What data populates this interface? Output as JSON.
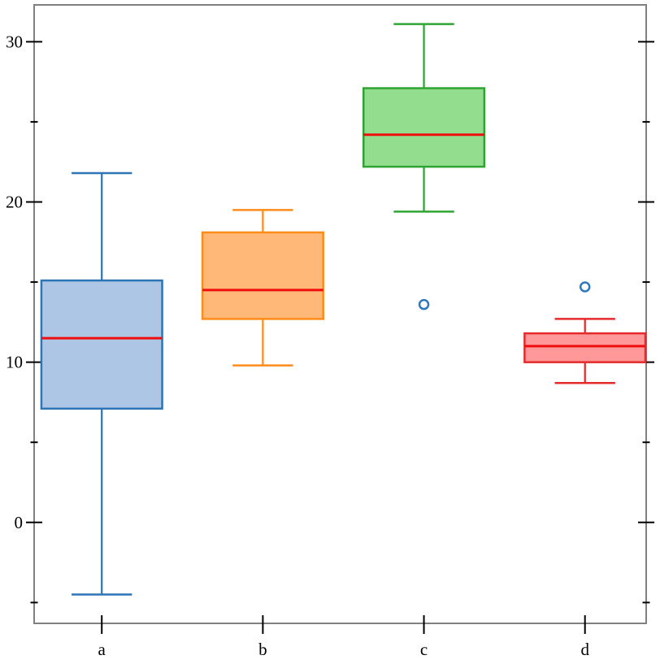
{
  "figure": {
    "background": "#ffffff"
  },
  "chart_data": {
    "type": "boxplot",
    "title": "",
    "xlabel": "",
    "ylabel": "",
    "grid": false,
    "legend": "none",
    "categories": [
      "a",
      "b",
      "c",
      "d"
    ],
    "ylim": [
      -6.3,
      32.3
    ],
    "y_major_ticks": [
      0,
      10,
      20,
      30
    ],
    "y_minor_ticks": [
      -5,
      5,
      15,
      25
    ],
    "axis_color": "#808080",
    "tick_color": "#000000",
    "tick_label_color": "#000000",
    "median_color": "#ee0e0e",
    "outlier_color": "#2e79be",
    "series": [
      {
        "name": "a",
        "position": 1,
        "whisker_low": -4.5,
        "q1": 7.1,
        "median": 11.5,
        "q3": 15.1,
        "whisker_high": 21.8,
        "outliers": [],
        "stroke": "#2e75b6",
        "fill": "#aec6e6"
      },
      {
        "name": "b",
        "position": 2,
        "whisker_low": 9.8,
        "q1": 12.7,
        "median": 14.5,
        "q3": 18.1,
        "whisker_high": 19.5,
        "outliers": [],
        "stroke": "#ff8c1a",
        "fill": "#ffb878"
      },
      {
        "name": "c",
        "position": 3,
        "whisker_low": 19.4,
        "q1": 22.2,
        "median": 24.2,
        "q3": 27.1,
        "whisker_high": 31.1,
        "outliers": [
          13.6
        ],
        "stroke": "#2fa433",
        "fill": "#92dd8e"
      },
      {
        "name": "d",
        "position": 4,
        "whisker_low": 8.7,
        "q1": 10.0,
        "median": 11.0,
        "q3": 11.8,
        "whisker_high": 12.7,
        "outliers": [
          14.7
        ],
        "stroke": "#e32b2b",
        "fill": "#ff9898"
      }
    ]
  }
}
